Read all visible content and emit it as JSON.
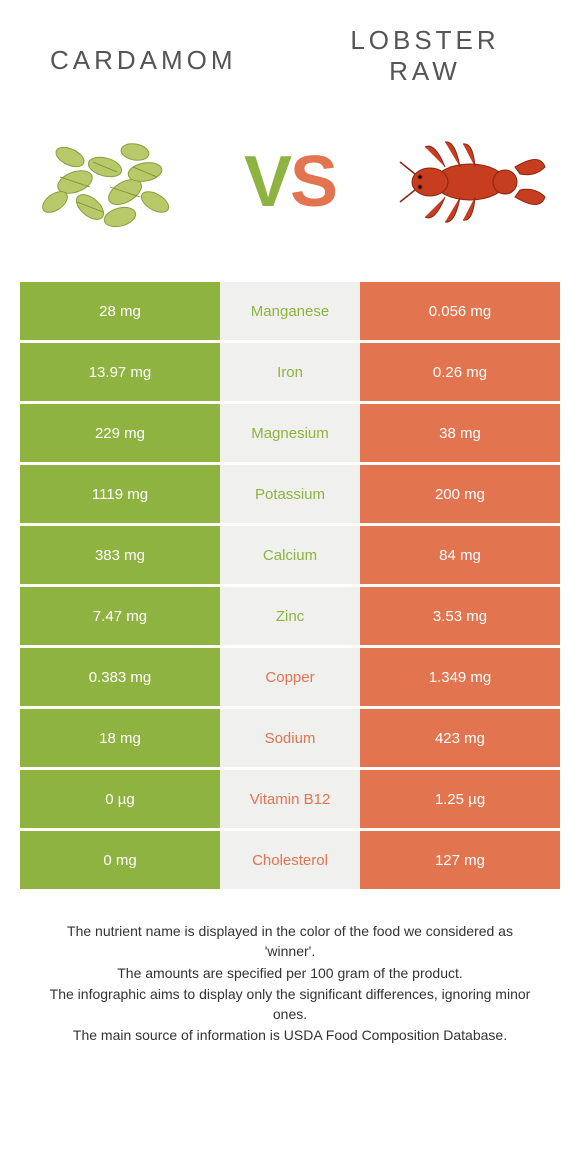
{
  "header": {
    "left": "CARDAMOM",
    "right_line1": "LOBSTER",
    "right_line2": "RAW"
  },
  "vs": {
    "v": "V",
    "s": "S"
  },
  "colors": {
    "left": "#8eb340",
    "right": "#e2744f",
    "mid_bg": "#f0f0ee"
  },
  "rows": [
    {
      "left": "28 mg",
      "name": "Manganese",
      "right": "0.056 mg",
      "winner": "left"
    },
    {
      "left": "13.97 mg",
      "name": "Iron",
      "right": "0.26 mg",
      "winner": "left"
    },
    {
      "left": "229 mg",
      "name": "Magnesium",
      "right": "38 mg",
      "winner": "left"
    },
    {
      "left": "1119 mg",
      "name": "Potassium",
      "right": "200 mg",
      "winner": "left"
    },
    {
      "left": "383 mg",
      "name": "Calcium",
      "right": "84 mg",
      "winner": "left"
    },
    {
      "left": "7.47 mg",
      "name": "Zinc",
      "right": "3.53 mg",
      "winner": "left"
    },
    {
      "left": "0.383 mg",
      "name": "Copper",
      "right": "1.349 mg",
      "winner": "right"
    },
    {
      "left": "18 mg",
      "name": "Sodium",
      "right": "423 mg",
      "winner": "right"
    },
    {
      "left": "0 µg",
      "name": "Vitamin B12",
      "right": "1.25 µg",
      "winner": "right"
    },
    {
      "left": "0 mg",
      "name": "Cholesterol",
      "right": "127 mg",
      "winner": "right"
    }
  ],
  "footer": {
    "l1": "The nutrient name is displayed in the color of the food we considered as 'winner'.",
    "l2": "The amounts are specified per 100 gram of the product.",
    "l3": "The infographic aims to display only the significant differences, ignoring minor ones.",
    "l4": "The main source of information is USDA Food Composition Database."
  }
}
